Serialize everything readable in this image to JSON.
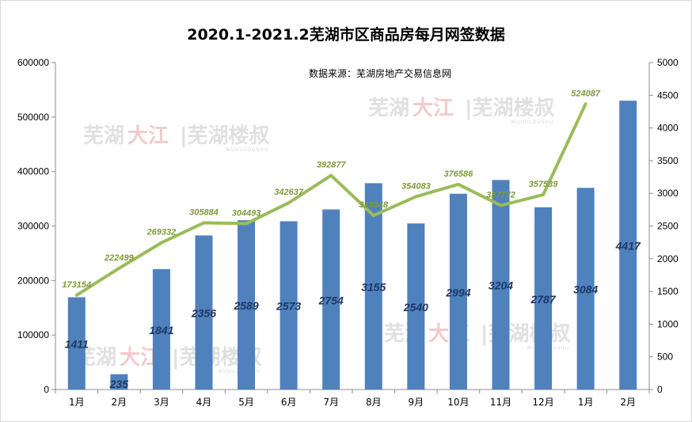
{
  "chart_data": {
    "type": "bar",
    "title": "2020.1-2021.2芜湖市区商品房每月网签数据",
    "annotation": "数据来源：芜湖房地产交易信息网",
    "categories": [
      "1月",
      "2月",
      "3月",
      "4月",
      "5月",
      "6月",
      "7月",
      "8月",
      "9月",
      "10月",
      "11月",
      "12月",
      "1月",
      "2月"
    ],
    "series": [
      {
        "type": "bar",
        "axis": "right",
        "color": "#4f81bd",
        "values": [
          1411,
          235,
          1841,
          2356,
          2589,
          2573,
          2754,
          3155,
          2540,
          2994,
          3204,
          2787,
          3084,
          4417
        ]
      },
      {
        "type": "line",
        "axis": "left",
        "color": "#9bbb59",
        "values": [
          173154,
          222499,
          269332,
          305884,
          304493,
          342637,
          392877,
          319348,
          354083,
          376586,
          337772,
          357539,
          524087,
          null
        ],
        "label_values": [
          "173154",
          "222499",
          "269332",
          "305884",
          "304493",
          "342637",
          "392877",
          "319348",
          "354083",
          "376586",
          "337772",
          "357539",
          "524087"
        ]
      }
    ],
    "left_axis": {
      "min": 0,
      "max": 600000,
      "ticks": [
        "0",
        "100000",
        "200000",
        "300000",
        "400000",
        "500000",
        "600000"
      ]
    },
    "right_axis": {
      "min": 0,
      "max": 5000,
      "ticks": [
        "0",
        "500",
        "1000",
        "1500",
        "2000",
        "2500",
        "3000",
        "3500",
        "4000",
        "4500",
        "5000"
      ]
    },
    "grid": false,
    "legend": "none"
  },
  "watermark": {
    "part1": "芜湖",
    "part2": "大江",
    "part3": "|芜湖楼叔",
    "sub": "WUHULOUSHU"
  }
}
